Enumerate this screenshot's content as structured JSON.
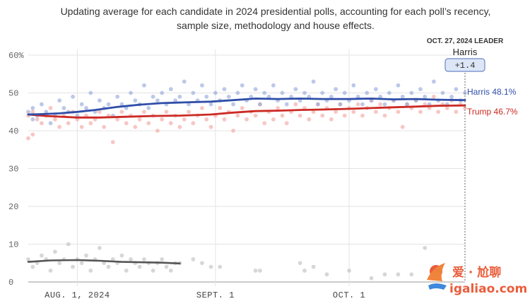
{
  "subtitle_line1": "Updating average for each candidate in 2024 presidential polls, accounting for each poll’s recency,",
  "subtitle_line2": "sample size, methodology and house effects.",
  "leader": {
    "date_label": "OCT. 27, 2024 LEADER",
    "name": "Harris",
    "margin": "+1.4"
  },
  "colors": {
    "harris": "#2f4ea8",
    "harris_dots": "#8fa3d8",
    "trump": "#cc2a24",
    "trump_dots": "#f1a19b",
    "other": "#555555",
    "other_dots": "#bdbdbd",
    "grid": "#e3e3e3",
    "badge_fill": "#dde6f6",
    "badge_stroke": "#6d87c9"
  },
  "watermark": {
    "line1": "爱 · 尬聊",
    "line2": "igaliao.com"
  },
  "chart_data": {
    "type": "line",
    "y_axis": {
      "ylim": [
        0,
        60
      ],
      "ticks": [
        "0",
        "10",
        "20",
        "30",
        "40",
        "50",
        "60%"
      ]
    },
    "x_axis": {
      "range": [
        "2024-07-21",
        "2024-10-27"
      ],
      "tick_labels": [
        {
          "label": "AUG. 1, 2024",
          "date": "2024-08-01"
        },
        {
          "label": "SEPT. 1",
          "date": "2024-09-01"
        },
        {
          "label": "OCT. 1",
          "date": "2024-10-01"
        }
      ]
    },
    "grid": true,
    "series": [
      {
        "key": "harris",
        "name": "Harris",
        "end_label": "Harris 48.1%",
        "points": [
          [
            "2024-07-21",
            44.3
          ],
          [
            "2024-07-24",
            44.4
          ],
          [
            "2024-07-28",
            44.6
          ],
          [
            "2024-08-01",
            45.0
          ],
          [
            "2024-08-05",
            45.5
          ],
          [
            "2024-08-10",
            46.3
          ],
          [
            "2024-08-15",
            46.9
          ],
          [
            "2024-08-20",
            47.3
          ],
          [
            "2024-08-25",
            47.5
          ],
          [
            "2024-08-31",
            47.7
          ],
          [
            "2024-09-05",
            48.1
          ],
          [
            "2024-09-10",
            48.5
          ],
          [
            "2024-09-15",
            48.4
          ],
          [
            "2024-09-20",
            48.5
          ],
          [
            "2024-09-25",
            48.4
          ],
          [
            "2024-10-01",
            48.4
          ],
          [
            "2024-10-06",
            48.5
          ],
          [
            "2024-10-11",
            48.3
          ],
          [
            "2024-10-16",
            48.4
          ],
          [
            "2024-10-21",
            48.2
          ],
          [
            "2024-10-27",
            48.1
          ]
        ]
      },
      {
        "key": "trump",
        "name": "Trump",
        "end_label": "Trump 46.7%",
        "points": [
          [
            "2024-07-21",
            44.3
          ],
          [
            "2024-07-25",
            43.9
          ],
          [
            "2024-08-01",
            43.5
          ],
          [
            "2024-08-06",
            43.5
          ],
          [
            "2024-08-12",
            43.7
          ],
          [
            "2024-08-18",
            43.9
          ],
          [
            "2024-08-24",
            44.0
          ],
          [
            "2024-08-31",
            44.3
          ],
          [
            "2024-09-05",
            44.8
          ],
          [
            "2024-09-10",
            45.2
          ],
          [
            "2024-09-15",
            45.3
          ],
          [
            "2024-09-20",
            45.5
          ],
          [
            "2024-09-25",
            45.6
          ],
          [
            "2024-10-01",
            45.8
          ],
          [
            "2024-10-06",
            46.0
          ],
          [
            "2024-10-11",
            46.2
          ],
          [
            "2024-10-16",
            46.4
          ],
          [
            "2024-10-21",
            46.6
          ],
          [
            "2024-10-27",
            46.7
          ]
        ]
      },
      {
        "key": "other",
        "points": [
          [
            "2024-07-21",
            5.3
          ],
          [
            "2024-07-26",
            5.7
          ],
          [
            "2024-08-01",
            5.8
          ],
          [
            "2024-08-06",
            5.6
          ],
          [
            "2024-08-11",
            5.3
          ],
          [
            "2024-08-16",
            5.2
          ],
          [
            "2024-08-20",
            5.1
          ],
          [
            "2024-08-24",
            4.9
          ]
        ]
      }
    ],
    "polls": {
      "harris": [
        [
          "2024-07-21",
          45
        ],
        [
          "2024-07-22",
          43
        ],
        [
          "2024-07-22",
          46
        ],
        [
          "2024-07-23",
          44
        ],
        [
          "2024-07-24",
          47
        ],
        [
          "2024-07-25",
          45
        ],
        [
          "2024-07-26",
          42
        ],
        [
          "2024-07-27",
          44
        ],
        [
          "2024-07-28",
          48
        ],
        [
          "2024-07-29",
          46
        ],
        [
          "2024-07-30",
          45
        ],
        [
          "2024-07-31",
          49
        ],
        [
          "2024-08-01",
          44
        ],
        [
          "2024-08-02",
          47
        ],
        [
          "2024-08-03",
          46
        ],
        [
          "2024-08-04",
          50
        ],
        [
          "2024-08-05",
          45
        ],
        [
          "2024-08-06",
          48
        ],
        [
          "2024-08-07",
          46
        ],
        [
          "2024-08-08",
          47
        ],
        [
          "2024-08-09",
          44
        ],
        [
          "2024-08-10",
          49
        ],
        [
          "2024-08-11",
          47
        ],
        [
          "2024-08-12",
          46
        ],
        [
          "2024-08-13",
          50
        ],
        [
          "2024-08-14",
          48
        ],
        [
          "2024-08-15",
          47
        ],
        [
          "2024-08-16",
          52
        ],
        [
          "2024-08-17",
          46
        ],
        [
          "2024-08-18",
          49
        ],
        [
          "2024-08-19",
          48
        ],
        [
          "2024-08-20",
          50
        ],
        [
          "2024-08-21",
          47
        ],
        [
          "2024-08-22",
          51
        ],
        [
          "2024-08-23",
          48
        ],
        [
          "2024-08-24",
          49
        ],
        [
          "2024-08-25",
          53
        ],
        [
          "2024-08-26",
          47
        ],
        [
          "2024-08-27",
          50
        ],
        [
          "2024-08-28",
          48
        ],
        [
          "2024-08-29",
          52
        ],
        [
          "2024-08-30",
          49
        ],
        [
          "2024-08-31",
          47
        ],
        [
          "2024-09-01",
          50
        ],
        [
          "2024-09-02",
          48
        ],
        [
          "2024-09-03",
          51
        ],
        [
          "2024-09-04",
          49
        ],
        [
          "2024-09-05",
          47
        ],
        [
          "2024-09-06",
          50
        ],
        [
          "2024-09-07",
          52
        ],
        [
          "2024-09-08",
          48
        ],
        [
          "2024-09-09",
          49
        ],
        [
          "2024-09-10",
          51
        ],
        [
          "2024-09-11",
          47
        ],
        [
          "2024-09-12",
          50
        ],
        [
          "2024-09-13",
          49
        ],
        [
          "2024-09-14",
          52
        ],
        [
          "2024-09-15",
          48
        ],
        [
          "2024-09-16",
          50
        ],
        [
          "2024-09-17",
          47
        ],
        [
          "2024-09-18",
          49
        ],
        [
          "2024-09-19",
          51
        ],
        [
          "2024-09-20",
          48
        ],
        [
          "2024-09-21",
          50
        ],
        [
          "2024-09-22",
          49
        ],
        [
          "2024-09-23",
          53
        ],
        [
          "2024-09-24",
          47
        ],
        [
          "2024-09-25",
          50
        ],
        [
          "2024-09-26",
          48
        ],
        [
          "2024-09-27",
          49
        ],
        [
          "2024-09-28",
          51
        ],
        [
          "2024-09-29",
          47
        ],
        [
          "2024-09-30",
          50
        ],
        [
          "2024-10-01",
          48
        ],
        [
          "2024-10-02",
          52
        ],
        [
          "2024-10-03",
          49
        ],
        [
          "2024-10-04",
          47
        ],
        [
          "2024-10-05",
          50
        ],
        [
          "2024-10-06",
          48
        ],
        [
          "2024-10-07",
          51
        ],
        [
          "2024-10-08",
          49
        ],
        [
          "2024-10-09",
          47
        ],
        [
          "2024-10-10",
          50
        ],
        [
          "2024-10-11",
          48
        ],
        [
          "2024-10-12",
          52
        ],
        [
          "2024-10-13",
          49
        ],
        [
          "2024-10-14",
          47
        ],
        [
          "2024-10-15",
          50
        ],
        [
          "2024-10-16",
          48
        ],
        [
          "2024-10-17",
          51
        ],
        [
          "2024-10-18",
          49
        ],
        [
          "2024-10-19",
          47
        ],
        [
          "2024-10-20",
          53
        ],
        [
          "2024-10-21",
          48
        ],
        [
          "2024-10-22",
          50
        ],
        [
          "2024-10-23",
          47
        ],
        [
          "2024-10-24",
          49
        ],
        [
          "2024-10-25",
          51
        ],
        [
          "2024-10-26",
          48
        ],
        [
          "2024-10-27",
          50
        ]
      ],
      "trump": [
        [
          "2024-07-21",
          44
        ],
        [
          "2024-07-21",
          38
        ],
        [
          "2024-07-22",
          39
        ],
        [
          "2024-07-22",
          45
        ],
        [
          "2024-07-23",
          43
        ],
        [
          "2024-07-24",
          42
        ],
        [
          "2024-07-25",
          44
        ],
        [
          "2024-07-26",
          46
        ],
        [
          "2024-07-27",
          43
        ],
        [
          "2024-07-28",
          41
        ],
        [
          "2024-07-29",
          44
        ],
        [
          "2024-07-30",
          42
        ],
        [
          "2024-07-31",
          45
        ],
        [
          "2024-08-01",
          43
        ],
        [
          "2024-08-02",
          41
        ],
        [
          "2024-08-03",
          44
        ],
        [
          "2024-08-04",
          42
        ],
        [
          "2024-08-05",
          43
        ],
        [
          "2024-08-06",
          45
        ],
        [
          "2024-08-07",
          41
        ],
        [
          "2024-08-08",
          44
        ],
        [
          "2024-08-09",
          37
        ],
        [
          "2024-08-10",
          43
        ],
        [
          "2024-08-11",
          45
        ],
        [
          "2024-08-12",
          42
        ],
        [
          "2024-08-13",
          44
        ],
        [
          "2024-08-14",
          41
        ],
        [
          "2024-08-15",
          43
        ],
        [
          "2024-08-16",
          45
        ],
        [
          "2024-08-17",
          42
        ],
        [
          "2024-08-18",
          44
        ],
        [
          "2024-08-19",
          40
        ],
        [
          "2024-08-20",
          43
        ],
        [
          "2024-08-21",
          45
        ],
        [
          "2024-08-22",
          42
        ],
        [
          "2024-08-23",
          44
        ],
        [
          "2024-08-24",
          41
        ],
        [
          "2024-08-25",
          43
        ],
        [
          "2024-08-26",
          45
        ],
        [
          "2024-08-27",
          42
        ],
        [
          "2024-08-28",
          44
        ],
        [
          "2024-08-29",
          46
        ],
        [
          "2024-08-30",
          43
        ],
        [
          "2024-08-31",
          41
        ],
        [
          "2024-09-01",
          44
        ],
        [
          "2024-09-02",
          46
        ],
        [
          "2024-09-03",
          43
        ],
        [
          "2024-09-04",
          45
        ],
        [
          "2024-09-05",
          40
        ],
        [
          "2024-09-06",
          44
        ],
        [
          "2024-09-07",
          46
        ],
        [
          "2024-09-08",
          43
        ],
        [
          "2024-09-09",
          45
        ],
        [
          "2024-09-10",
          44
        ],
        [
          "2024-09-11",
          47
        ],
        [
          "2024-09-12",
          42
        ],
        [
          "2024-09-13",
          45
        ],
        [
          "2024-09-14",
          43
        ],
        [
          "2024-09-15",
          46
        ],
        [
          "2024-09-16",
          44
        ],
        [
          "2024-09-17",
          42
        ],
        [
          "2024-09-18",
          45
        ],
        [
          "2024-09-19",
          47
        ],
        [
          "2024-09-20",
          44
        ],
        [
          "2024-09-21",
          46
        ],
        [
          "2024-09-22",
          43
        ],
        [
          "2024-09-23",
          45
        ],
        [
          "2024-09-24",
          47
        ],
        [
          "2024-09-25",
          44
        ],
        [
          "2024-09-26",
          46
        ],
        [
          "2024-09-27",
          43
        ],
        [
          "2024-09-28",
          45
        ],
        [
          "2024-09-29",
          47
        ],
        [
          "2024-09-30",
          44
        ],
        [
          "2024-10-01",
          46
        ],
        [
          "2024-10-02",
          45
        ],
        [
          "2024-10-03",
          47
        ],
        [
          "2024-10-04",
          44
        ],
        [
          "2024-10-05",
          46
        ],
        [
          "2024-10-06",
          48
        ],
        [
          "2024-10-07",
          45
        ],
        [
          "2024-10-08",
          47
        ],
        [
          "2024-10-09",
          44
        ],
        [
          "2024-10-10",
          46
        ],
        [
          "2024-10-11",
          48
        ],
        [
          "2024-10-12",
          45
        ],
        [
          "2024-10-13",
          41
        ],
        [
          "2024-10-14",
          47
        ],
        [
          "2024-10-15",
          46
        ],
        [
          "2024-10-16",
          48
        ],
        [
          "2024-10-17",
          45
        ],
        [
          "2024-10-18",
          47
        ],
        [
          "2024-10-19",
          46
        ],
        [
          "2024-10-20",
          49
        ],
        [
          "2024-10-21",
          45
        ],
        [
          "2024-10-22",
          47
        ],
        [
          "2024-10-23",
          46
        ],
        [
          "2024-10-24",
          48
        ],
        [
          "2024-10-25",
          45
        ],
        [
          "2024-10-26",
          47
        ],
        [
          "2024-10-27",
          46
        ]
      ],
      "other": [
        [
          "2024-07-21",
          6
        ],
        [
          "2024-07-22",
          4
        ],
        [
          "2024-07-23",
          5
        ],
        [
          "2024-07-24",
          7
        ],
        [
          "2024-07-25",
          6
        ],
        [
          "2024-07-26",
          3
        ],
        [
          "2024-07-27",
          8
        ],
        [
          "2024-07-28",
          5
        ],
        [
          "2024-07-29",
          6
        ],
        [
          "2024-07-30",
          10
        ],
        [
          "2024-07-31",
          4
        ],
        [
          "2024-08-01",
          6
        ],
        [
          "2024-08-02",
          5
        ],
        [
          "2024-08-03",
          7
        ],
        [
          "2024-08-04",
          3
        ],
        [
          "2024-08-05",
          6
        ],
        [
          "2024-08-06",
          9
        ],
        [
          "2024-08-07",
          5
        ],
        [
          "2024-08-08",
          4
        ],
        [
          "2024-08-09",
          6
        ],
        [
          "2024-08-10",
          5
        ],
        [
          "2024-08-11",
          7
        ],
        [
          "2024-08-12",
          3
        ],
        [
          "2024-08-13",
          6
        ],
        [
          "2024-08-14",
          5
        ],
        [
          "2024-08-15",
          4
        ],
        [
          "2024-08-16",
          6
        ],
        [
          "2024-08-17",
          5
        ],
        [
          "2024-08-18",
          3
        ],
        [
          "2024-08-19",
          5
        ],
        [
          "2024-08-20",
          6
        ],
        [
          "2024-08-21",
          4
        ],
        [
          "2024-08-22",
          3
        ],
        [
          "2024-08-23",
          5
        ],
        [
          "2024-08-24",
          5
        ],
        [
          "2024-08-27",
          6
        ],
        [
          "2024-08-29",
          5
        ],
        [
          "2024-08-31",
          4
        ],
        [
          "2024-09-02",
          4
        ],
        [
          "2024-09-10",
          3
        ],
        [
          "2024-09-11",
          3
        ],
        [
          "2024-09-20",
          5
        ],
        [
          "2024-09-21",
          3
        ],
        [
          "2024-09-23",
          4
        ],
        [
          "2024-09-26",
          2
        ],
        [
          "2024-10-01",
          3
        ],
        [
          "2024-10-06",
          1
        ],
        [
          "2024-10-09",
          2
        ],
        [
          "2024-10-12",
          2
        ],
        [
          "2024-10-15",
          2
        ],
        [
          "2024-10-18",
          9
        ],
        [
          "2024-10-21",
          3
        ]
      ]
    }
  }
}
